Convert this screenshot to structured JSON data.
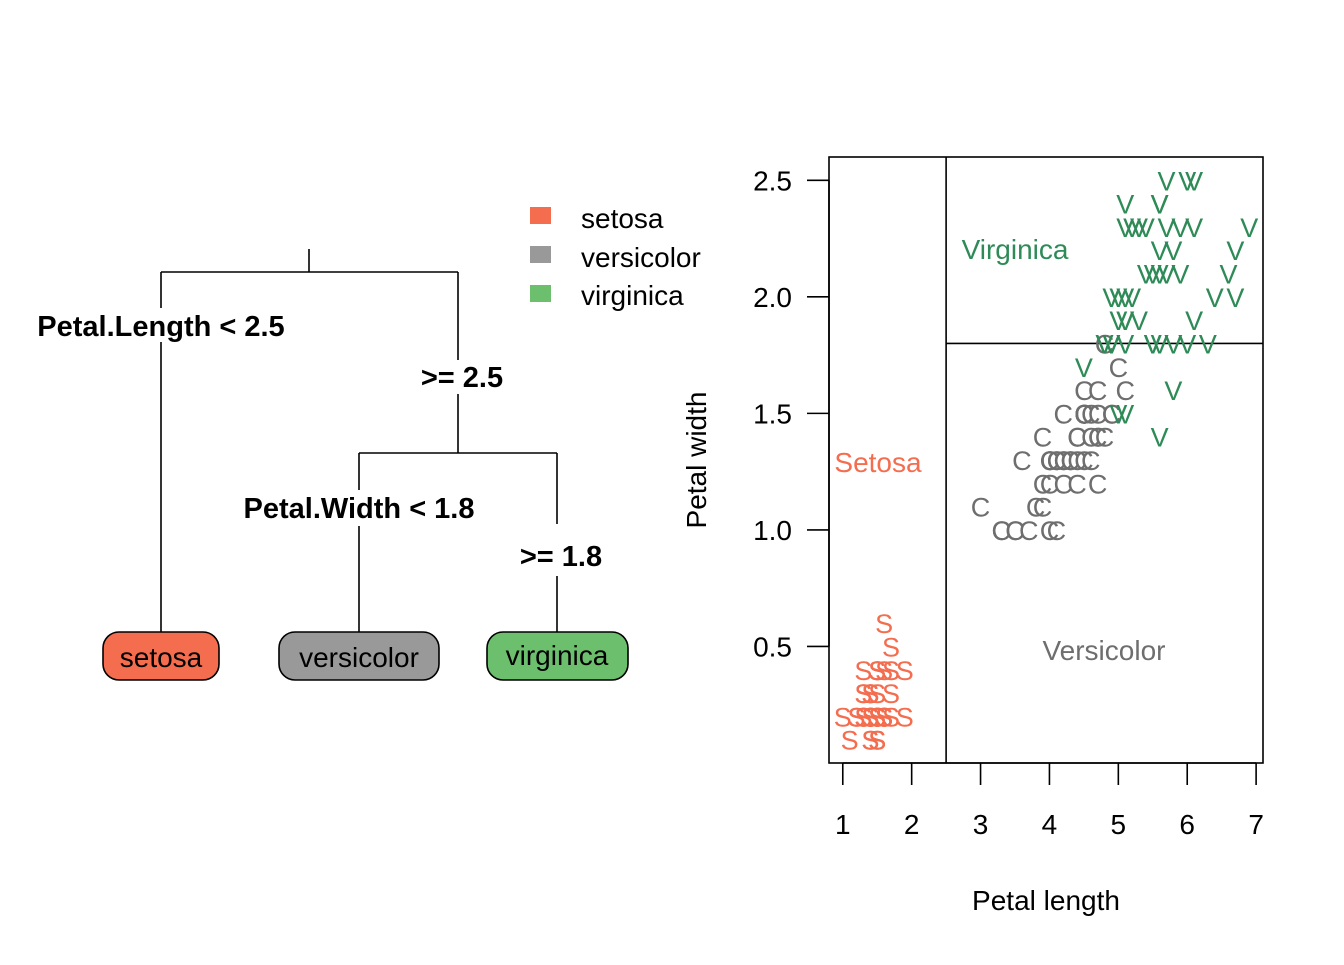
{
  "colors": {
    "setosa_fill": "#f46d4f",
    "versicolor_fill": "#999999",
    "virginica_fill": "#6cbf6c",
    "setosa_text": "#f46d4f",
    "versicolor_text": "#6e6e6e",
    "virginica_text": "#2e8b57"
  },
  "tree": {
    "root_split": "Petal.Length < 2.5",
    "root_right": ">= 2.5",
    "second_split": "Petal.Width < 1.8",
    "second_right": ">= 1.8",
    "leaves": [
      "setosa",
      "versicolor",
      "virginica"
    ]
  },
  "legend": {
    "items": [
      {
        "label": "setosa",
        "color": "#f46d4f"
      },
      {
        "label": "versicolor",
        "color": "#999999"
      },
      {
        "label": "virginica",
        "color": "#6cbf6c"
      }
    ]
  },
  "chart_data": {
    "type": "scatter",
    "xlabel": "Petal length",
    "ylabel": "Petal width",
    "xlim": [
      0.8,
      7.1
    ],
    "ylim": [
      0.0,
      2.6
    ],
    "xticks": [
      "1",
      "2",
      "3",
      "4",
      "5",
      "6",
      "7"
    ],
    "yticks": [
      "0.5",
      "1.0",
      "1.5",
      "2.0",
      "2.5"
    ],
    "partitions": {
      "x_split": 2.5,
      "y_split": 1.8
    },
    "region_labels": {
      "setosa": "Setosa",
      "versicolor": "Versicolor",
      "virginica": "Virginica"
    },
    "series": [
      {
        "name": "setosa",
        "marker": "S",
        "color": "#f46d4f",
        "points": [
          [
            1.4,
            0.2
          ],
          [
            1.4,
            0.2
          ],
          [
            1.3,
            0.2
          ],
          [
            1.5,
            0.2
          ],
          [
            1.4,
            0.2
          ],
          [
            1.7,
            0.4
          ],
          [
            1.4,
            0.3
          ],
          [
            1.5,
            0.2
          ],
          [
            1.4,
            0.2
          ],
          [
            1.5,
            0.1
          ],
          [
            1.5,
            0.2
          ],
          [
            1.6,
            0.2
          ],
          [
            1.4,
            0.1
          ],
          [
            1.1,
            0.1
          ],
          [
            1.2,
            0.2
          ],
          [
            1.5,
            0.4
          ],
          [
            1.3,
            0.4
          ],
          [
            1.4,
            0.3
          ],
          [
            1.7,
            0.3
          ],
          [
            1.5,
            0.3
          ],
          [
            1.7,
            0.2
          ],
          [
            1.5,
            0.4
          ],
          [
            1.0,
            0.2
          ],
          [
            1.7,
            0.5
          ],
          [
            1.9,
            0.2
          ],
          [
            1.6,
            0.2
          ],
          [
            1.6,
            0.4
          ],
          [
            1.5,
            0.2
          ],
          [
            1.4,
            0.2
          ],
          [
            1.6,
            0.2
          ],
          [
            1.6,
            0.2
          ],
          [
            1.5,
            0.4
          ],
          [
            1.5,
            0.1
          ],
          [
            1.4,
            0.2
          ],
          [
            1.5,
            0.2
          ],
          [
            1.2,
            0.2
          ],
          [
            1.3,
            0.2
          ],
          [
            1.4,
            0.1
          ],
          [
            1.3,
            0.2
          ],
          [
            1.5,
            0.2
          ],
          [
            1.3,
            0.3
          ],
          [
            1.3,
            0.3
          ],
          [
            1.3,
            0.2
          ],
          [
            1.6,
            0.6
          ],
          [
            1.9,
            0.4
          ],
          [
            1.4,
            0.3
          ],
          [
            1.6,
            0.2
          ],
          [
            1.4,
            0.2
          ],
          [
            1.5,
            0.2
          ],
          [
            1.4,
            0.2
          ]
        ]
      },
      {
        "name": "versicolor",
        "marker": "C",
        "color": "#6e6e6e",
        "points": [
          [
            4.7,
            1.4
          ],
          [
            4.5,
            1.5
          ],
          [
            4.9,
            1.5
          ],
          [
            4.0,
            1.3
          ],
          [
            4.6,
            1.5
          ],
          [
            4.5,
            1.3
          ],
          [
            4.7,
            1.6
          ],
          [
            3.3,
            1.0
          ],
          [
            4.6,
            1.3
          ],
          [
            3.9,
            1.4
          ],
          [
            3.5,
            1.0
          ],
          [
            4.2,
            1.5
          ],
          [
            4.0,
            1.0
          ],
          [
            4.7,
            1.4
          ],
          [
            3.6,
            1.3
          ],
          [
            4.4,
            1.4
          ],
          [
            4.5,
            1.5
          ],
          [
            4.1,
            1.0
          ],
          [
            4.5,
            1.5
          ],
          [
            3.9,
            1.1
          ],
          [
            4.8,
            1.8
          ],
          [
            4.0,
            1.3
          ],
          [
            4.9,
            1.5
          ],
          [
            4.7,
            1.2
          ],
          [
            4.3,
            1.3
          ],
          [
            4.4,
            1.4
          ],
          [
            4.8,
            1.4
          ],
          [
            5.0,
            1.7
          ],
          [
            4.5,
            1.5
          ],
          [
            3.5,
            1.0
          ],
          [
            3.8,
            1.1
          ],
          [
            3.7,
            1.0
          ],
          [
            3.9,
            1.2
          ],
          [
            5.1,
            1.6
          ],
          [
            4.5,
            1.5
          ],
          [
            4.5,
            1.6
          ],
          [
            4.7,
            1.5
          ],
          [
            4.4,
            1.3
          ],
          [
            4.1,
            1.3
          ],
          [
            4.0,
            1.3
          ],
          [
            4.4,
            1.2
          ],
          [
            4.6,
            1.4
          ],
          [
            4.0,
            1.2
          ],
          [
            3.3,
            1.0
          ],
          [
            4.2,
            1.3
          ],
          [
            4.2,
            1.2
          ],
          [
            4.2,
            1.3
          ],
          [
            4.3,
            1.3
          ],
          [
            3.0,
            1.1
          ],
          [
            4.1,
            1.3
          ]
        ]
      },
      {
        "name": "virginica",
        "marker": "V",
        "color": "#2e8b57",
        "points": [
          [
            6.0,
            2.5
          ],
          [
            5.1,
            1.9
          ],
          [
            5.9,
            2.1
          ],
          [
            5.6,
            1.8
          ],
          [
            5.8,
            2.2
          ],
          [
            6.6,
            2.1
          ],
          [
            4.5,
            1.7
          ],
          [
            6.3,
            1.8
          ],
          [
            5.8,
            1.8
          ],
          [
            6.1,
            2.5
          ],
          [
            5.1,
            2.0
          ],
          [
            5.3,
            1.9
          ],
          [
            5.5,
            2.1
          ],
          [
            5.0,
            2.0
          ],
          [
            5.1,
            2.4
          ],
          [
            5.3,
            2.3
          ],
          [
            5.5,
            1.8
          ],
          [
            6.7,
            2.2
          ],
          [
            6.9,
            2.3
          ],
          [
            5.0,
            1.5
          ],
          [
            5.7,
            2.3
          ],
          [
            4.9,
            2.0
          ],
          [
            6.7,
            2.0
          ],
          [
            4.9,
            1.8
          ],
          [
            5.7,
            2.1
          ],
          [
            6.0,
            1.8
          ],
          [
            4.8,
            1.8
          ],
          [
            4.9,
            1.8
          ],
          [
            5.6,
            2.1
          ],
          [
            5.8,
            1.6
          ],
          [
            6.1,
            1.9
          ],
          [
            6.4,
            2.0
          ],
          [
            5.6,
            2.2
          ],
          [
            5.1,
            1.5
          ],
          [
            5.6,
            1.4
          ],
          [
            6.1,
            2.3
          ],
          [
            5.6,
            2.4
          ],
          [
            5.5,
            1.8
          ],
          [
            4.8,
            1.8
          ],
          [
            5.4,
            2.1
          ],
          [
            5.6,
            2.4
          ],
          [
            5.1,
            2.3
          ],
          [
            5.1,
            1.9
          ],
          [
            5.9,
            2.3
          ],
          [
            5.7,
            2.5
          ],
          [
            5.2,
            2.3
          ],
          [
            5.0,
            1.9
          ],
          [
            5.2,
            2.0
          ],
          [
            5.4,
            2.3
          ],
          [
            5.1,
            1.8
          ]
        ]
      }
    ]
  }
}
